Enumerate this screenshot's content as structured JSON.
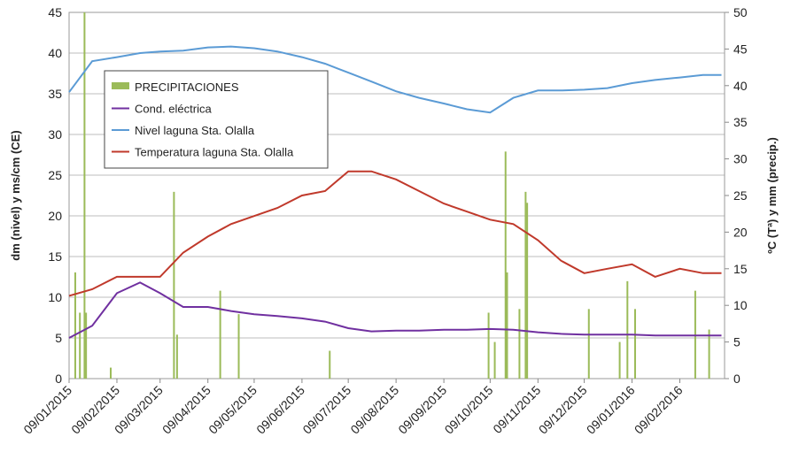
{
  "chart_data": {
    "type": "line",
    "y_label": "dm (nivel)  y ms/cm (CE)",
    "y2_label": "ºC (Tª) y mm (precip.)",
    "x": [
      "09/01/2015",
      "24/01/2015",
      "09/02/2015",
      "24/02/2015",
      "09/03/2015",
      "24/03/2015",
      "09/04/2015",
      "24/04/2015",
      "09/05/2015",
      "24/05/2015",
      "09/06/2015",
      "24/06/2015",
      "09/07/2015",
      "24/07/2015",
      "09/08/2015",
      "24/08/2015",
      "09/09/2015",
      "24/09/2015",
      "09/10/2015",
      "24/10/2015",
      "09/11/2015",
      "24/11/2015",
      "09/12/2015",
      "24/12/2015",
      "09/01/2016",
      "24/01/2016",
      "09/02/2016",
      "24/02/2016",
      "07/03/2016"
    ],
    "xlim": [
      "09/01/2015",
      "09/03/2016"
    ],
    "xticks": [
      "09/01/2015",
      "09/02/2015",
      "09/03/2015",
      "09/04/2015",
      "09/05/2015",
      "09/06/2015",
      "09/07/2015",
      "09/08/2015",
      "09/09/2015",
      "09/10/2015",
      "09/11/2015",
      "09/12/2015",
      "09/01/2016",
      "09/02/2016"
    ],
    "ylim": [
      0,
      45
    ],
    "yticks": [
      0,
      5,
      10,
      15,
      20,
      25,
      30,
      35,
      40,
      45
    ],
    "y2lim": [
      0,
      50
    ],
    "y2ticks": [
      0,
      5,
      10,
      15,
      20,
      25,
      30,
      35,
      40,
      45,
      50
    ],
    "grid": true,
    "legend": "upper left",
    "series": [
      {
        "name": "PRECIPITACIONES",
        "color": "#9bbb59",
        "axis": "y2",
        "kind": "bar",
        "x": [
          "13/01/2015",
          "16/01/2015",
          "19/01/2015",
          "20/01/2015",
          "05/02/2015",
          "18/03/2015",
          "20/03/2015",
          "17/04/2015",
          "29/04/2015",
          "27/06/2015",
          "08/10/2015",
          "12/10/2015",
          "19/10/2015",
          "20/10/2015",
          "28/10/2015",
          "01/11/2015",
          "02/11/2015",
          "12/12/2015",
          "01/01/2016",
          "06/01/2016",
          "11/01/2016",
          "19/02/2016",
          "28/02/2016"
        ],
        "values": [
          14.5,
          9,
          50,
          9,
          1.5,
          25.5,
          6,
          12,
          8.8,
          3.8,
          9,
          5,
          31,
          14.5,
          9.5,
          25.5,
          24,
          9.5,
          5,
          13.3,
          9.5,
          12,
          6.7
        ]
      },
      {
        "name": "Cond. eléctrica",
        "color": "#7030a0",
        "values": [
          5.0,
          6.5,
          10.5,
          11.8,
          10.5,
          8.8,
          8.8,
          8.3,
          7.9,
          7.7,
          7.4,
          7.0,
          6.2,
          5.8,
          5.9,
          5.9,
          6.0,
          6.0,
          6.1,
          6.0,
          5.7,
          5.5,
          5.4,
          5.4,
          5.4,
          5.3,
          5.3,
          5.3,
          5.3
        ]
      },
      {
        "name": "Nivel laguna Sta. Olalla",
        "color": "#5b9bd5",
        "values": [
          35.2,
          39.0,
          39.5,
          40.0,
          40.2,
          40.3,
          40.7,
          40.8,
          40.6,
          40.2,
          39.5,
          38.7,
          37.6,
          36.5,
          35.3,
          34.5,
          33.8,
          33.1,
          32.7,
          34.5,
          35.4,
          35.4,
          35.5,
          35.7,
          36.3,
          36.7,
          37.0,
          37.3,
          37.3
        ]
      },
      {
        "name": "Temperatura laguna Sta. Olalla",
        "color": "#c0392b",
        "axis": "y2",
        "values": [
          11.3,
          12.2,
          13.9,
          13.9,
          13.9,
          17.2,
          19.4,
          21.1,
          22.2,
          23.3,
          25.0,
          25.6,
          28.3,
          28.3,
          27.2,
          25.6,
          23.9,
          22.8,
          21.7,
          21.1,
          18.9,
          16.1,
          14.4,
          15.0,
          15.6,
          13.9,
          15.0,
          14.4,
          14.4
        ]
      }
    ]
  }
}
